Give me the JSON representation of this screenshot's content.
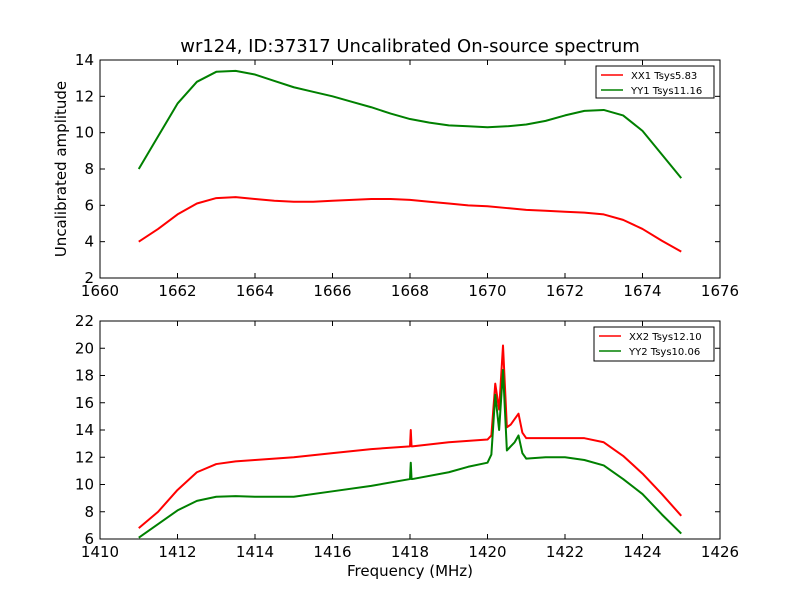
{
  "title": "wr124, ID:37317 Uncalibrated On-source spectrum",
  "colors": {
    "xx": "#ff0000",
    "yy": "#008000"
  },
  "chart_data": [
    {
      "type": "line",
      "xlabel": "",
      "ylabel": "Uncalibrated amplitude",
      "xlim": [
        1660,
        1676
      ],
      "ylim": [
        2,
        14
      ],
      "xticks": [
        1660,
        1662,
        1664,
        1666,
        1668,
        1670,
        1672,
        1674,
        1676
      ],
      "yticks": [
        2,
        4,
        6,
        8,
        10,
        12,
        14
      ],
      "legend_position": "top-right",
      "series": [
        {
          "name": "XX1 Tsys5.83",
          "color": "#ff0000",
          "x": [
            1661.0,
            1661.5,
            1662.0,
            1662.5,
            1663.0,
            1663.5,
            1664.0,
            1664.5,
            1665.0,
            1665.5,
            1666.0,
            1666.5,
            1667.0,
            1667.5,
            1668.0,
            1668.5,
            1669.0,
            1669.5,
            1670.0,
            1670.5,
            1671.0,
            1671.5,
            1672.0,
            1672.5,
            1673.0,
            1673.5,
            1674.0,
            1674.5,
            1675.0
          ],
          "y": [
            4.0,
            4.7,
            5.5,
            6.1,
            6.4,
            6.45,
            6.35,
            6.25,
            6.2,
            6.2,
            6.25,
            6.3,
            6.35,
            6.35,
            6.3,
            6.2,
            6.1,
            6.0,
            5.95,
            5.85,
            5.75,
            5.7,
            5.65,
            5.6,
            5.5,
            5.2,
            4.7,
            4.05,
            3.45
          ]
        },
        {
          "name": "YY1 Tsys11.16",
          "color": "#008000",
          "x": [
            1661.0,
            1661.5,
            1662.0,
            1662.5,
            1663.0,
            1663.5,
            1664.0,
            1664.5,
            1665.0,
            1665.5,
            1666.0,
            1666.5,
            1667.0,
            1667.5,
            1668.0,
            1668.5,
            1669.0,
            1669.5,
            1670.0,
            1670.5,
            1671.0,
            1671.5,
            1672.0,
            1672.5,
            1673.0,
            1673.5,
            1674.0,
            1674.5,
            1675.0
          ],
          "y": [
            8.0,
            9.8,
            11.6,
            12.8,
            13.35,
            13.4,
            13.2,
            12.85,
            12.5,
            12.25,
            12.0,
            11.7,
            11.4,
            11.05,
            10.75,
            10.55,
            10.4,
            10.35,
            10.3,
            10.35,
            10.45,
            10.65,
            10.95,
            11.2,
            11.25,
            10.95,
            10.1,
            8.8,
            7.5
          ]
        }
      ]
    },
    {
      "type": "line",
      "xlabel": "Frequency (MHz)",
      "ylabel": "",
      "xlim": [
        1410,
        1426
      ],
      "ylim": [
        6,
        22
      ],
      "xticks": [
        1410,
        1412,
        1414,
        1416,
        1418,
        1420,
        1422,
        1424,
        1426
      ],
      "yticks": [
        6,
        8,
        10,
        12,
        14,
        16,
        18,
        20,
        22
      ],
      "legend_position": "top-right",
      "series": [
        {
          "name": "XX2 Tsys12.10",
          "color": "#ff0000",
          "x": [
            1411.0,
            1411.5,
            1412.0,
            1412.5,
            1413.0,
            1413.5,
            1414.0,
            1415.0,
            1416.0,
            1417.0,
            1418.0,
            1418.02,
            1418.04,
            1418.06,
            1419.0,
            1419.5,
            1420.0,
            1420.1,
            1420.2,
            1420.3,
            1420.4,
            1420.5,
            1420.6,
            1420.7,
            1420.8,
            1420.9,
            1421.0,
            1421.5,
            1422.0,
            1422.5,
            1423.0,
            1423.5,
            1424.0,
            1424.5,
            1425.0
          ],
          "y": [
            6.8,
            8.0,
            9.6,
            10.9,
            11.5,
            11.7,
            11.8,
            12.0,
            12.3,
            12.6,
            12.8,
            14.0,
            12.8,
            12.8,
            13.1,
            13.2,
            13.3,
            13.6,
            17.4,
            15.5,
            20.2,
            14.2,
            14.4,
            14.8,
            15.2,
            13.8,
            13.4,
            13.4,
            13.4,
            13.4,
            13.1,
            12.1,
            10.8,
            9.3,
            7.7
          ]
        },
        {
          "name": "YY2 Tsys10.06",
          "color": "#008000",
          "x": [
            1411.0,
            1411.5,
            1412.0,
            1412.5,
            1413.0,
            1413.5,
            1414.0,
            1415.0,
            1416.0,
            1417.0,
            1418.0,
            1418.02,
            1418.04,
            1418.06,
            1419.0,
            1419.5,
            1420.0,
            1420.1,
            1420.2,
            1420.3,
            1420.4,
            1420.5,
            1420.6,
            1420.7,
            1420.8,
            1420.9,
            1421.0,
            1421.5,
            1422.0,
            1422.5,
            1423.0,
            1423.5,
            1424.0,
            1424.5,
            1425.0
          ],
          "y": [
            6.1,
            7.1,
            8.1,
            8.8,
            9.1,
            9.15,
            9.1,
            9.1,
            9.5,
            9.9,
            10.4,
            11.6,
            10.4,
            10.4,
            10.9,
            11.3,
            11.6,
            12.2,
            16.6,
            14.0,
            18.4,
            12.5,
            12.8,
            13.1,
            13.6,
            12.3,
            11.9,
            12.0,
            12.0,
            11.8,
            11.4,
            10.4,
            9.3,
            7.8,
            6.4
          ]
        }
      ]
    }
  ]
}
